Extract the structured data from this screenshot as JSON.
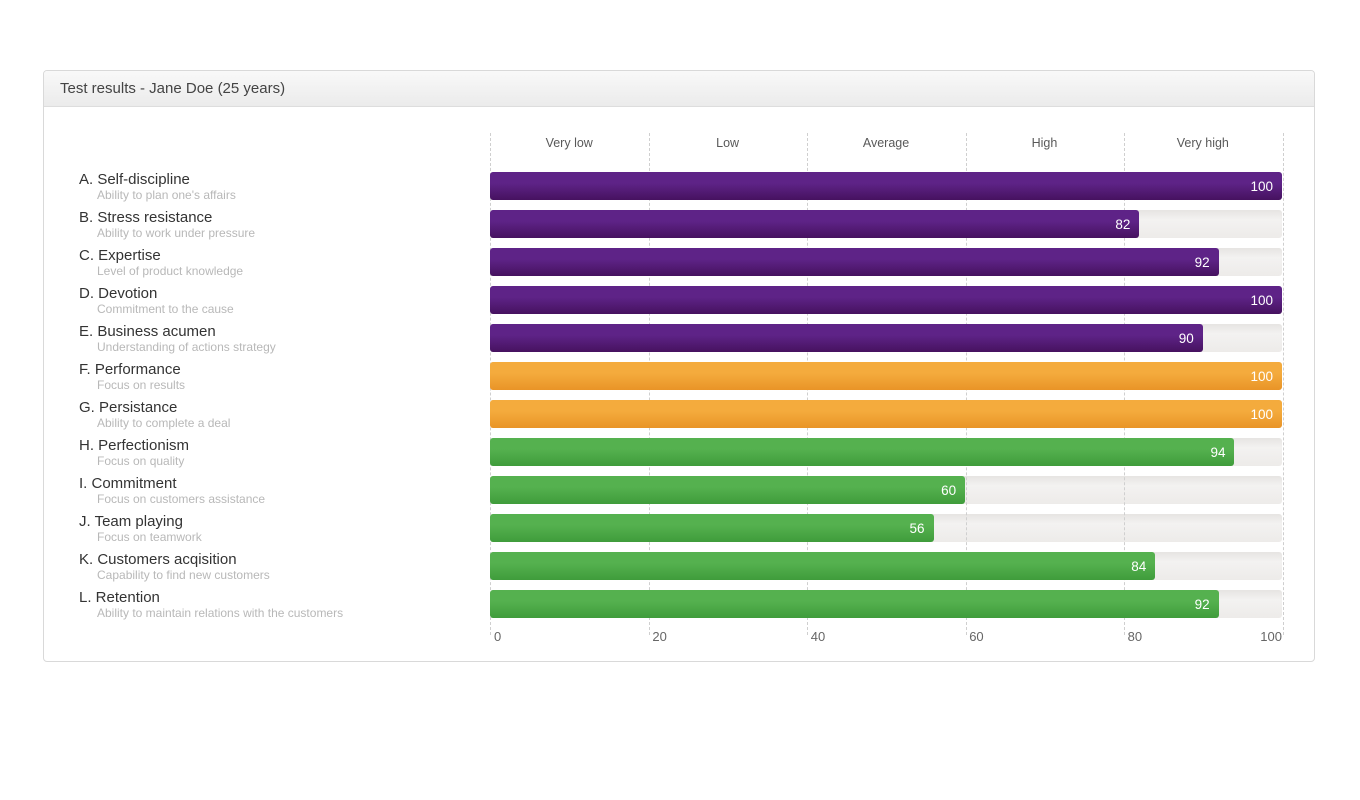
{
  "panel": {
    "title": "Test results - Jane Doe (25 years)"
  },
  "chart_data": {
    "type": "bar",
    "orientation": "horizontal",
    "title": "Test results - Jane Doe (25 years)",
    "xlim": [
      0,
      100
    ],
    "x_ticks": [
      0,
      20,
      40,
      60,
      80,
      100
    ],
    "band_labels": [
      "Very low",
      "Low",
      "Average",
      "High",
      "Very high"
    ],
    "grid": "vertical-dashed",
    "legend": "none",
    "categories": [
      {
        "letter": "A.",
        "name": "Self-discipline",
        "description": "Ability to plan one's affairs",
        "value": 100,
        "group": "purple"
      },
      {
        "letter": "B.",
        "name": "Stress resistance",
        "description": "Ability to work under pressure",
        "value": 82,
        "group": "purple"
      },
      {
        "letter": "C.",
        "name": "Expertise",
        "description": "Level of product knowledge",
        "value": 92,
        "group": "purple"
      },
      {
        "letter": "D.",
        "name": "Devotion",
        "description": "Commitment to the cause",
        "value": 100,
        "group": "purple"
      },
      {
        "letter": "E.",
        "name": "Business acumen",
        "description": "Understanding of actions strategy",
        "value": 90,
        "group": "purple"
      },
      {
        "letter": "F.",
        "name": "Performance",
        "description": "Focus on results",
        "value": 100,
        "group": "orange"
      },
      {
        "letter": "G.",
        "name": "Persistance",
        "description": "Ability to complete a deal",
        "value": 100,
        "group": "orange"
      },
      {
        "letter": "H.",
        "name": "Perfectionism",
        "description": "Focus on quality",
        "value": 94,
        "group": "green"
      },
      {
        "letter": "I.",
        "name": "Commitment",
        "description": "Focus on customers assistance",
        "value": 60,
        "group": "green"
      },
      {
        "letter": "J.",
        "name": "Team playing",
        "description": "Focus on teamwork",
        "value": 56,
        "group": "green"
      },
      {
        "letter": "K.",
        "name": "Customers acqisition",
        "description": "Capability to find new customers",
        "value": 84,
        "group": "green"
      },
      {
        "letter": "L.",
        "name": "Retention",
        "description": "Ability to maintain relations with the customers",
        "value": 92,
        "group": "green"
      }
    ],
    "colors": {
      "purple": {
        "top": "#5e2387",
        "bottom": "#46125f"
      },
      "orange": {
        "top": "#f4ab3d",
        "bottom": "#e99427"
      },
      "green": {
        "top": "#55b14f",
        "bottom": "#3f9c3b"
      },
      "track": {
        "top": "#e6e4e2",
        "bottom": "#edebe9"
      },
      "gridline": "#cfcfcf",
      "value_label": "#ffffff"
    }
  }
}
